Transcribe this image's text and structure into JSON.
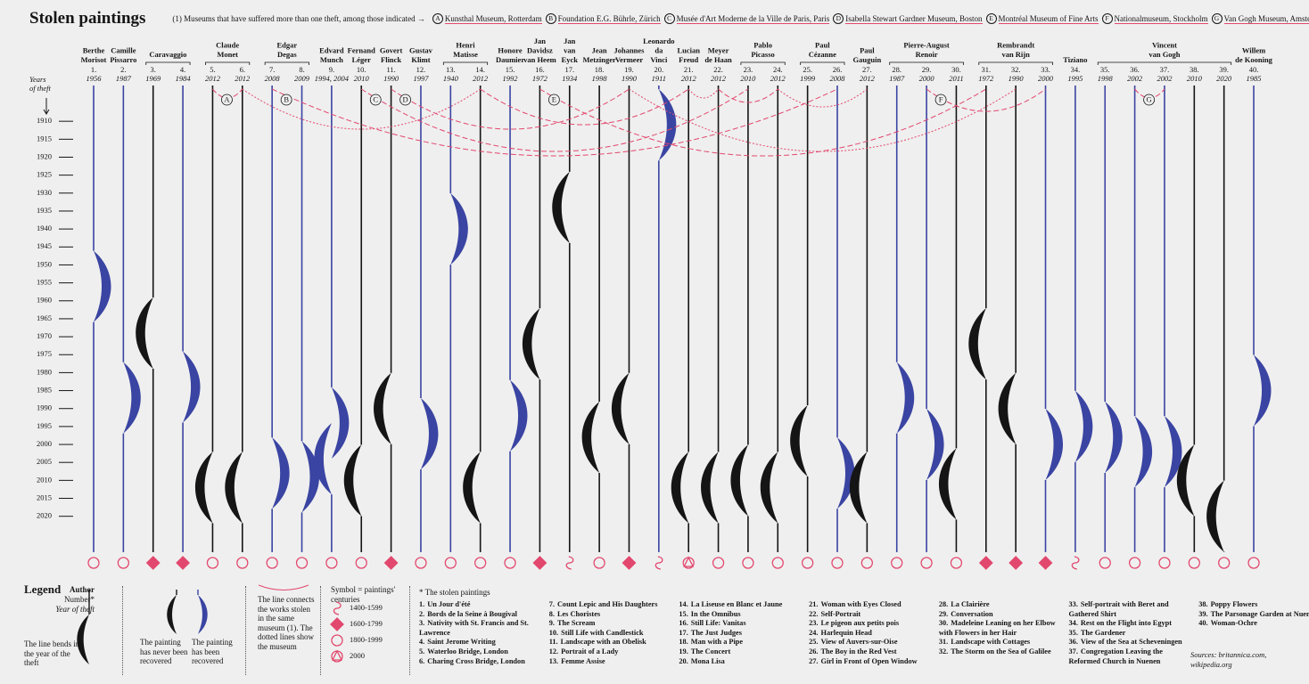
{
  "chart_data": {
    "type": "theft-timeline",
    "title": "Stolen paintings",
    "museum_note": "(1) Museums that have suffered more than one theft, among those indicated →",
    "museums": [
      {
        "letter": "A",
        "name": "Kunsthal Museum, Rotterdam"
      },
      {
        "letter": "B",
        "name": "Foundation E.G. Bührle, Zürich"
      },
      {
        "letter": "C",
        "name": "Musée d'Art Moderne de la Ville de Paris, Paris"
      },
      {
        "letter": "D",
        "name": "Isabella Stewart Gardner Museum, Boston"
      },
      {
        "letter": "E",
        "name": "Montréal Museum of Fine Arts"
      },
      {
        "letter": "F",
        "name": "Nationalmuseum, Stockholm"
      },
      {
        "letter": "G",
        "name": "Van Gogh Museum, Amsterdam"
      }
    ],
    "y_label": [
      "Years",
      "of theft"
    ],
    "ylim": [
      1905,
      2030
    ],
    "yticks": [
      1910,
      1915,
      1920,
      1925,
      1930,
      1935,
      1940,
      1945,
      1950,
      1955,
      1960,
      1965,
      1970,
      1975,
      1980,
      1985,
      1990,
      1995,
      2000,
      2005,
      2010,
      2015,
      2020
    ],
    "colors": {
      "recovered": "#3a44a2",
      "not_recovered": "#151515",
      "museum": "#e2486e"
    },
    "centuries": [
      "1400-1599",
      "1600-1799",
      "1800-1999",
      "2000"
    ],
    "authors": [
      {
        "name": [
          "Berthe",
          "Morisot"
        ],
        "paintings": [
          {
            "number": "1.",
            "year_label": "1956",
            "years": [
              1956
            ],
            "recovered": true,
            "century": "1800-1999",
            "title": "Un Jour d'été"
          }
        ]
      },
      {
        "name": [
          "Camille",
          "Pissarro"
        ],
        "paintings": [
          {
            "number": "2.",
            "year_label": "1987",
            "years": [
              1987
            ],
            "recovered": true,
            "century": "1800-1999",
            "title": "Bords de la Seine à Bougival"
          }
        ]
      },
      {
        "name": [
          "Caravaggio"
        ],
        "paintings": [
          {
            "number": "3.",
            "year_label": "1969",
            "years": [
              1969
            ],
            "recovered": false,
            "century": "1600-1799",
            "title": "Nativity with St. Francis and St. Lawrence"
          },
          {
            "number": "4.",
            "year_label": "1984",
            "years": [
              1984
            ],
            "recovered": true,
            "century": "1600-1799",
            "title": "Saint Jerome Writing"
          }
        ]
      },
      {
        "name": [
          "Claude",
          "Monet"
        ],
        "paintings": [
          {
            "number": "5.",
            "year_label": "2012",
            "years": [
              2012
            ],
            "recovered": false,
            "century": "1800-1999",
            "museum": "A",
            "title": "Waterloo Bridge, London"
          },
          {
            "number": "6.",
            "year_label": "2012",
            "years": [
              2012
            ],
            "recovered": false,
            "century": "1800-1999",
            "museum": "A",
            "title": "Charing Cross Bridge, London"
          }
        ]
      },
      {
        "name": [
          "Edgar",
          "Degas"
        ],
        "paintings": [
          {
            "number": "7.",
            "year_label": "2008",
            "years": [
              2008
            ],
            "recovered": true,
            "century": "1800-1999",
            "museum": "B",
            "title": "Count Lepic and His Daughters"
          },
          {
            "number": "8.",
            "year_label": "2009",
            "years": [
              2009
            ],
            "recovered": true,
            "century": "1800-1999",
            "title": "Les Choristes"
          }
        ]
      },
      {
        "name": [
          "Edvard",
          "Munch"
        ],
        "paintings": [
          {
            "number": "9.",
            "year_label": "1994, 2004",
            "years": [
              1994,
              2004
            ],
            "recovered": true,
            "century": "1800-1999",
            "title": "The Scream"
          }
        ]
      },
      {
        "name": [
          "Fernand",
          "Léger"
        ],
        "paintings": [
          {
            "number": "10.",
            "year_label": "2010",
            "years": [
              2010
            ],
            "recovered": false,
            "century": "1800-1999",
            "museum": "C",
            "title": "Still Life with Candlestick"
          }
        ]
      },
      {
        "name": [
          "Govert",
          "Flinck"
        ],
        "paintings": [
          {
            "number": "11.",
            "year_label": "1990",
            "years": [
              1990
            ],
            "recovered": false,
            "century": "1600-1799",
            "museum": "D",
            "title": "Landscape with an Obelisk"
          }
        ]
      },
      {
        "name": [
          "Gustav",
          "Klimt"
        ],
        "paintings": [
          {
            "number": "12.",
            "year_label": "1997",
            "years": [
              1997
            ],
            "recovered": true,
            "century": "1800-1999",
            "title": "Portrait of a Lady"
          }
        ]
      },
      {
        "name": [
          "Henri",
          "Matisse"
        ],
        "paintings": [
          {
            "number": "13.",
            "year_label": "1940",
            "years": [
              1940
            ],
            "recovered": true,
            "century": "1800-1999",
            "title": "Femme Assise"
          },
          {
            "number": "14.",
            "year_label": "2012",
            "years": [
              2012
            ],
            "recovered": false,
            "century": "1800-1999",
            "museum": "A",
            "title": "La Liseuse en Blanc et Jaune"
          }
        ]
      },
      {
        "name": [
          "Honore",
          "Daumier"
        ],
        "paintings": [
          {
            "number": "15.",
            "year_label": "1992",
            "years": [
              1992
            ],
            "recovered": true,
            "century": "1800-1999",
            "title": "In the Omnibus"
          }
        ]
      },
      {
        "name": [
          "Jan",
          "Davidsz",
          "van Heem"
        ],
        "paintings": [
          {
            "number": "16.",
            "year_label": "1972",
            "years": [
              1972
            ],
            "recovered": false,
            "century": "1600-1799",
            "museum": "E",
            "title": "Still Life: Vanitas"
          }
        ]
      },
      {
        "name": [
          "Jan",
          "van",
          "Eyck"
        ],
        "paintings": [
          {
            "number": "17.",
            "year_label": "1934",
            "years": [
              1934
            ],
            "recovered": false,
            "century": "1400-1599",
            "title": "The Just Judges"
          }
        ]
      },
      {
        "name": [
          "Jean",
          "Metzinger"
        ],
        "paintings": [
          {
            "number": "18.",
            "year_label": "1998",
            "years": [
              1998
            ],
            "recovered": false,
            "century": "1800-1999",
            "title": "Man with a Pipe"
          }
        ]
      },
      {
        "name": [
          "Johannes",
          "Vermeer"
        ],
        "paintings": [
          {
            "number": "19.",
            "year_label": "1990",
            "years": [
              1990
            ],
            "recovered": false,
            "century": "1600-1799",
            "museum": "D",
            "title": "The Concert"
          }
        ]
      },
      {
        "name": [
          "Leonardo",
          "da",
          "Vinci"
        ],
        "paintings": [
          {
            "number": "20.",
            "year_label": "1911",
            "years": [
              1911
            ],
            "recovered": true,
            "century": "1400-1599",
            "title": "Mona Lisa"
          }
        ]
      },
      {
        "name": [
          "Lucian",
          "Freud"
        ],
        "paintings": [
          {
            "number": "21.",
            "year_label": "2012",
            "years": [
              2012
            ],
            "recovered": false,
            "century": "2000",
            "museum": "A",
            "title": "Woman with Eyes Closed"
          }
        ]
      },
      {
        "name": [
          "Meyer",
          "de Haan"
        ],
        "paintings": [
          {
            "number": "22.",
            "year_label": "2012",
            "years": [
              2012
            ],
            "recovered": false,
            "century": "1800-1999",
            "museum": "A",
            "title": "Self-Portrait"
          }
        ]
      },
      {
        "name": [
          "Pablo",
          "Picasso"
        ],
        "paintings": [
          {
            "number": "23.",
            "year_label": "2010",
            "years": [
              2010
            ],
            "recovered": false,
            "century": "1800-1999",
            "museum": "C",
            "title": "Le pigeon aux petits pois"
          },
          {
            "number": "24.",
            "year_label": "2012",
            "years": [
              2012
            ],
            "recovered": false,
            "century": "1800-1999",
            "museum": "A",
            "title": "Harlequin Head"
          }
        ]
      },
      {
        "name": [
          "Paul",
          "Cézanne"
        ],
        "paintings": [
          {
            "number": "25.",
            "year_label": "1999",
            "years": [
              1999
            ],
            "recovered": false,
            "century": "1800-1999",
            "title": "View of Auvers-sur-Oise"
          },
          {
            "number": "26.",
            "year_label": "2008",
            "years": [
              2008
            ],
            "recovered": true,
            "century": "1800-1999",
            "museum": "B",
            "title": "The Boy in the Red Vest"
          }
        ]
      },
      {
        "name": [
          "Paul",
          "Gauguin"
        ],
        "paintings": [
          {
            "number": "27.",
            "year_label": "2012",
            "years": [
              2012
            ],
            "recovered": false,
            "century": "1800-1999",
            "museum": "A",
            "title": "Girl in Front of Open Window"
          }
        ]
      },
      {
        "name": [
          "Pierre-August",
          "Renoir"
        ],
        "paintings": [
          {
            "number": "28.",
            "year_label": "1987",
            "years": [
              1987
            ],
            "recovered": true,
            "century": "1800-1999",
            "title": "La Clairière"
          },
          {
            "number": "29.",
            "year_label": "2000",
            "years": [
              2000
            ],
            "recovered": true,
            "century": "1800-1999",
            "museum": "F",
            "title": "Conversation"
          },
          {
            "number": "30.",
            "year_label": "2011",
            "years": [
              2011
            ],
            "recovered": false,
            "century": "1800-1999",
            "title": "Madeleine Leaning on her Elbow with Flowers in her Hair"
          }
        ]
      },
      {
        "name": [
          "Rembrandt",
          "van Rijn"
        ],
        "paintings": [
          {
            "number": "31.",
            "year_label": "1972",
            "years": [
              1972
            ],
            "recovered": false,
            "century": "1600-1799",
            "museum": "E",
            "title": "Landscape with Cottages"
          },
          {
            "number": "32.",
            "year_label": "1990",
            "years": [
              1990
            ],
            "recovered": false,
            "century": "1600-1799",
            "museum": "D",
            "title": "The Storm on the Sea of Galilee"
          },
          {
            "number": "33.",
            "year_label": "2000",
            "years": [
              2000
            ],
            "recovered": true,
            "century": "1600-1799",
            "museum": "F",
            "title": "Self-portrait with Beret and Gathered Shirt"
          }
        ]
      },
      {
        "name": [
          "Tiziano"
        ],
        "paintings": [
          {
            "number": "34.",
            "year_label": "1995",
            "years": [
              1995
            ],
            "recovered": true,
            "century": "1400-1599",
            "title": "Rest on the Flight into Egypt"
          }
        ]
      },
      {
        "name": [
          "Vincent",
          "van Gogh"
        ],
        "paintings": [
          {
            "number": "35.",
            "year_label": "1998",
            "years": [
              1998
            ],
            "recovered": true,
            "century": "1800-1999",
            "title": "The Gardener"
          },
          {
            "number": "36.",
            "year_label": "2002",
            "years": [
              2002
            ],
            "recovered": true,
            "century": "1800-1999",
            "museum": "G",
            "title": "View of the Sea at Scheveningen"
          },
          {
            "number": "37.",
            "year_label": "2002",
            "years": [
              2002
            ],
            "recovered": true,
            "century": "1800-1999",
            "museum": "G",
            "title": "Congregation Leaving the Reformed Church in Nuenen"
          },
          {
            "number": "38.",
            "year_label": "2010",
            "years": [
              2010
            ],
            "recovered": false,
            "century": "1800-1999",
            "title": "Poppy Flowers"
          },
          {
            "number": "39.",
            "year_label": "2020",
            "years": [
              2020
            ],
            "recovered": false,
            "century": "1800-1999",
            "title": "The Parsonage Garden at Nuenen"
          }
        ]
      },
      {
        "name": [
          "Willem",
          "de Kooning"
        ],
        "paintings": [
          {
            "number": "40.",
            "year_label": "1985",
            "years": [
              1985
            ],
            "recovered": true,
            "century": "1800-1999",
            "title": "Woman-Ochre"
          }
        ]
      }
    ],
    "legend": {
      "title": "Legend",
      "author": "Author",
      "number": "Number*",
      "year": "Year of theft",
      "bend": "The line bends in the year of the theft",
      "not_recovered": "The painting has never been recovered",
      "recovered": "The painting has been recovered",
      "connects": "The line connects the works stolen in the same museum (1). The dotted lines show the museum",
      "symbols_title": "Symbol = paintings' centuries",
      "list_title": "* The stolen paintings",
      "sources": "Sources: britannica.com, wikipedia.org"
    }
  }
}
